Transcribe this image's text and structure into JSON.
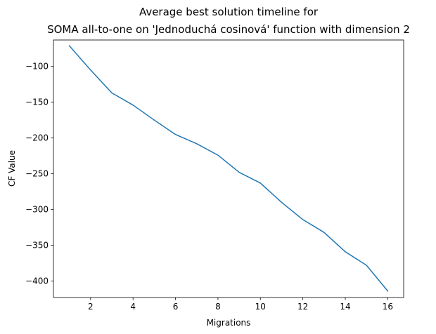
{
  "chart_data": {
    "type": "line",
    "title": "Average best solution timeline for",
    "subtitle": "SOMA all-to-one on 'Jednoduchá cosinová' function with dimension 2",
    "xlabel": "Migrations",
    "ylabel": "CF Value",
    "xlim": [
      0.25,
      16.75
    ],
    "ylim": [
      -423,
      -63
    ],
    "xticks": [
      2,
      4,
      6,
      8,
      10,
      12,
      14,
      16
    ],
    "yticks": [
      -100,
      -150,
      -200,
      -250,
      -300,
      -350,
      -400
    ],
    "grid": false,
    "series": [
      {
        "color": "#1f77b4",
        "x": [
          1,
          2,
          3,
          4,
          5,
          6,
          7,
          8,
          9,
          10,
          11,
          12,
          13,
          14,
          15,
          16
        ],
        "y": [
          -71,
          -105,
          -137,
          -154,
          -175,
          -195,
          -208,
          -224,
          -248,
          -263,
          -290,
          -314,
          -332,
          -359,
          -378,
          -414
        ]
      }
    ]
  }
}
